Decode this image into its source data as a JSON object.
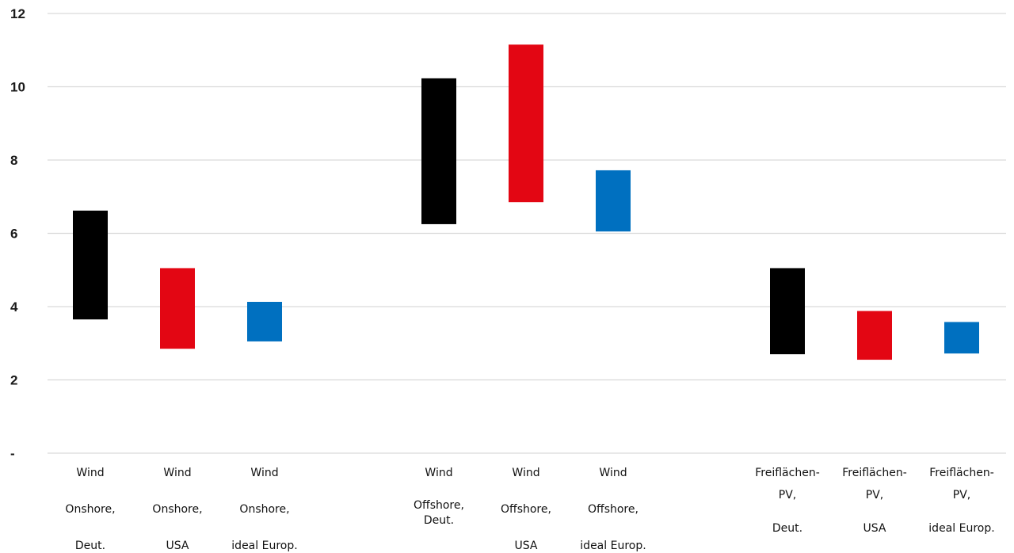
{
  "chart_data": {
    "type": "bar",
    "subtype": "floating-range",
    "title": "",
    "xlabel": "",
    "ylabel": "",
    "ylim": [
      0,
      12
    ],
    "yticks": [
      0,
      2,
      4,
      6,
      8,
      10,
      12
    ],
    "ytick_labels": [
      "-",
      "2",
      "4",
      "6",
      "8",
      "10",
      "12"
    ],
    "grid": true,
    "legend": "none",
    "categories": [
      "Wind Onshore, Deut.",
      "Wind Onshore, USA",
      "Wind Onshore, ideal Europ.",
      "Wind Offshore, Deut.",
      "Wind Offshore, USA",
      "Wind Offshore, ideal Europ.",
      "Freiflächen-PV, Deut.",
      "Freiflächen-PV, USA",
      "Freiflächen-PV, ideal Europ."
    ],
    "category_label_lines": [
      [
        "Wind",
        "Onshore,",
        "Deut."
      ],
      [
        "Wind",
        "Onshore,",
        "USA"
      ],
      [
        "Wind",
        "Onshore,",
        "ideal Europ."
      ],
      [
        "Wind",
        "Offshore,",
        "Deut."
      ],
      [
        "Wind",
        "Offshore,",
        "USA"
      ],
      [
        "Wind",
        "Offshore,",
        "ideal Europ."
      ],
      [
        "Freiflächen-",
        "PV,",
        "Deut."
      ],
      [
        "Freiflächen-",
        "PV,",
        "USA"
      ],
      [
        "Freiflächen-",
        "PV,",
        "ideal Europ."
      ]
    ],
    "low": [
      3.65,
      2.85,
      3.05,
      6.25,
      6.85,
      6.05,
      2.7,
      2.55,
      2.72
    ],
    "high": [
      6.62,
      5.05,
      4.13,
      10.23,
      11.15,
      7.72,
      5.05,
      3.88,
      3.58
    ],
    "colors": [
      "#000000",
      "#e30613",
      "#0070c0",
      "#000000",
      "#e30613",
      "#0070c0",
      "#000000",
      "#e30613",
      "#0070c0"
    ]
  }
}
